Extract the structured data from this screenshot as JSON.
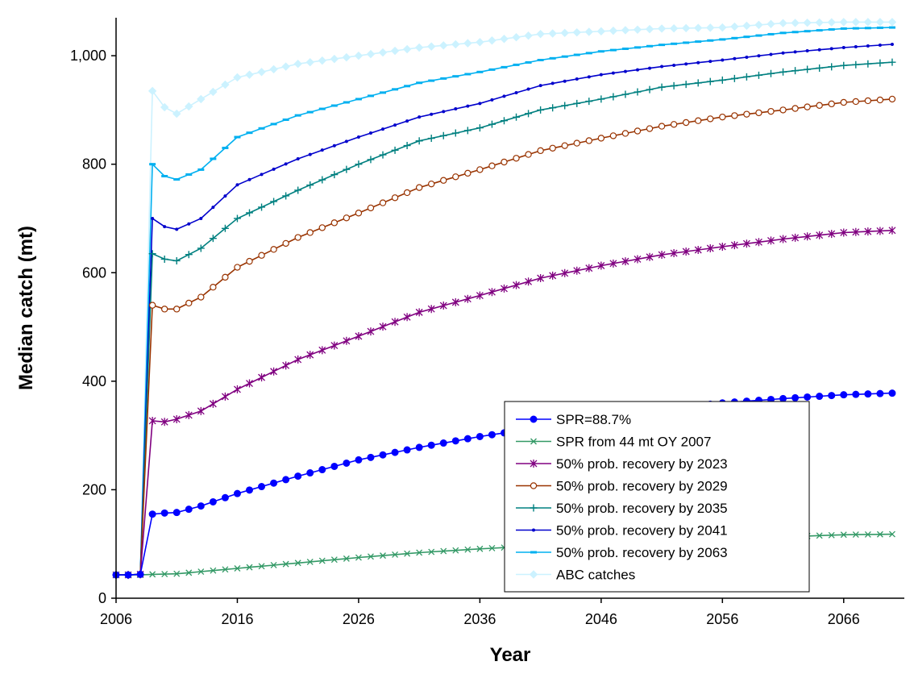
{
  "chart_data": {
    "type": "line",
    "title": "",
    "xlabel": "Year",
    "ylabel": "Median catch (mt)",
    "xlim": [
      2006,
      2071
    ],
    "ylim": [
      0,
      1070
    ],
    "x_ticks": [
      2006,
      2016,
      2026,
      2036,
      2046,
      2056,
      2066
    ],
    "y_ticks": [
      0,
      200,
      400,
      600,
      800,
      1000
    ],
    "y_tick_labels": [
      "0",
      "200",
      "400",
      "600",
      "800",
      "1,000"
    ],
    "grid": false,
    "legend_position": "bottom-right",
    "series": [
      {
        "name": "SPR=88.7%",
        "color": "#0000ff",
        "marker": "filled-circle",
        "points": [
          [
            2006,
            43
          ],
          [
            2007,
            43
          ],
          [
            2008,
            44
          ],
          [
            2009,
            155
          ],
          [
            2010,
            157
          ],
          [
            2011,
            158
          ],
          [
            2013,
            170
          ],
          [
            2016,
            193
          ],
          [
            2021,
            225
          ],
          [
            2026,
            255
          ],
          [
            2031,
            278
          ],
          [
            2036,
            298
          ],
          [
            2041,
            315
          ],
          [
            2046,
            328
          ],
          [
            2051,
            348
          ],
          [
            2056,
            360
          ],
          [
            2061,
            368
          ],
          [
            2066,
            375
          ],
          [
            2070,
            378
          ]
        ]
      },
      {
        "name": "SPR from 44 mt OY 2007",
        "color": "#339966",
        "marker": "x",
        "points": [
          [
            2006,
            43
          ],
          [
            2007,
            43
          ],
          [
            2008,
            43
          ],
          [
            2009,
            44
          ],
          [
            2011,
            45
          ],
          [
            2016,
            55
          ],
          [
            2021,
            65
          ],
          [
            2026,
            75
          ],
          [
            2031,
            84
          ],
          [
            2036,
            91
          ],
          [
            2041,
            97
          ],
          [
            2046,
            102
          ],
          [
            2051,
            106
          ],
          [
            2056,
            110
          ],
          [
            2061,
            113
          ],
          [
            2066,
            117
          ],
          [
            2070,
            118
          ]
        ]
      },
      {
        "name": "50% prob. recovery by 2023",
        "color": "#800080",
        "marker": "asterisk",
        "points": [
          [
            2006,
            43
          ],
          [
            2007,
            43
          ],
          [
            2008,
            44
          ],
          [
            2009,
            327
          ],
          [
            2010,
            325
          ],
          [
            2011,
            330
          ],
          [
            2013,
            345
          ],
          [
            2016,
            385
          ],
          [
            2021,
            440
          ],
          [
            2026,
            483
          ],
          [
            2031,
            527
          ],
          [
            2036,
            558
          ],
          [
            2041,
            590
          ],
          [
            2046,
            613
          ],
          [
            2051,
            633
          ],
          [
            2056,
            648
          ],
          [
            2061,
            662
          ],
          [
            2066,
            674
          ],
          [
            2070,
            678
          ]
        ]
      },
      {
        "name": "50% prob. recovery by 2029",
        "color": "#993300",
        "marker": "open-circle",
        "points": [
          [
            2006,
            43
          ],
          [
            2007,
            43
          ],
          [
            2008,
            44
          ],
          [
            2009,
            540
          ],
          [
            2010,
            533
          ],
          [
            2011,
            533
          ],
          [
            2013,
            555
          ],
          [
            2016,
            610
          ],
          [
            2021,
            665
          ],
          [
            2026,
            710
          ],
          [
            2031,
            757
          ],
          [
            2036,
            790
          ],
          [
            2041,
            825
          ],
          [
            2046,
            848
          ],
          [
            2051,
            870
          ],
          [
            2056,
            887
          ],
          [
            2061,
            900
          ],
          [
            2066,
            914
          ],
          [
            2070,
            920
          ]
        ]
      },
      {
        "name": "50% prob. recovery by 2035",
        "color": "#008080",
        "marker": "plus",
        "points": [
          [
            2006,
            43
          ],
          [
            2007,
            43
          ],
          [
            2008,
            44
          ],
          [
            2009,
            635
          ],
          [
            2010,
            625
          ],
          [
            2011,
            622
          ],
          [
            2013,
            645
          ],
          [
            2016,
            700
          ],
          [
            2021,
            752
          ],
          [
            2026,
            800
          ],
          [
            2031,
            843
          ],
          [
            2036,
            867
          ],
          [
            2041,
            900
          ],
          [
            2046,
            920
          ],
          [
            2051,
            942
          ],
          [
            2056,
            955
          ],
          [
            2061,
            970
          ],
          [
            2066,
            982
          ],
          [
            2070,
            988
          ]
        ]
      },
      {
        "name": "50% prob. recovery by 2041",
        "color": "#0000cc",
        "marker": "small-dot",
        "points": [
          [
            2006,
            43
          ],
          [
            2007,
            43
          ],
          [
            2008,
            44
          ],
          [
            2009,
            700
          ],
          [
            2010,
            685
          ],
          [
            2011,
            680
          ],
          [
            2013,
            700
          ],
          [
            2016,
            762
          ],
          [
            2021,
            810
          ],
          [
            2026,
            850
          ],
          [
            2031,
            887
          ],
          [
            2036,
            912
          ],
          [
            2041,
            945
          ],
          [
            2046,
            965
          ],
          [
            2051,
            980
          ],
          [
            2056,
            992
          ],
          [
            2061,
            1005
          ],
          [
            2066,
            1015
          ],
          [
            2070,
            1021
          ]
        ]
      },
      {
        "name": "50% prob. recovery by 2063",
        "color": "#00b0f0",
        "marker": "dash",
        "points": [
          [
            2006,
            43
          ],
          [
            2007,
            43
          ],
          [
            2008,
            44
          ],
          [
            2009,
            800
          ],
          [
            2010,
            778
          ],
          [
            2011,
            772
          ],
          [
            2013,
            790
          ],
          [
            2016,
            850
          ],
          [
            2021,
            890
          ],
          [
            2026,
            920
          ],
          [
            2031,
            950
          ],
          [
            2036,
            970
          ],
          [
            2041,
            992
          ],
          [
            2046,
            1008
          ],
          [
            2051,
            1020
          ],
          [
            2056,
            1030
          ],
          [
            2061,
            1042
          ],
          [
            2066,
            1050
          ],
          [
            2070,
            1052
          ]
        ]
      },
      {
        "name": "ABC catches",
        "color": "#ccf2ff",
        "marker": "diamond",
        "points": [
          [
            2006,
            43
          ],
          [
            2007,
            43
          ],
          [
            2008,
            44
          ],
          [
            2009,
            935
          ],
          [
            2010,
            905
          ],
          [
            2011,
            893
          ],
          [
            2013,
            920
          ],
          [
            2016,
            960
          ],
          [
            2021,
            985
          ],
          [
            2026,
            1000
          ],
          [
            2031,
            1015
          ],
          [
            2036,
            1025
          ],
          [
            2041,
            1040
          ],
          [
            2046,
            1045
          ],
          [
            2051,
            1050
          ],
          [
            2056,
            1052
          ],
          [
            2061,
            1060
          ],
          [
            2066,
            1062
          ],
          [
            2070,
            1062
          ]
        ]
      }
    ]
  }
}
